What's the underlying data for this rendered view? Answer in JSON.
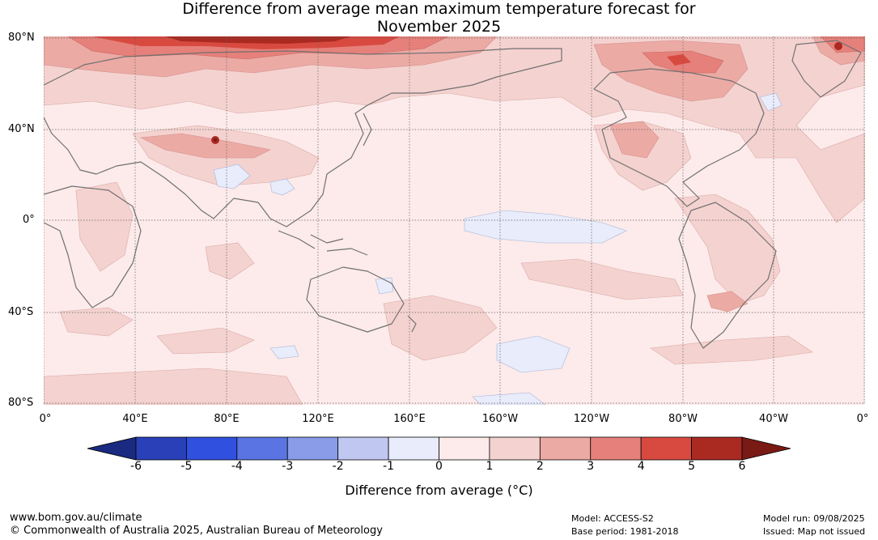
{
  "title_line1": "Difference from average mean maximum temperature forecast for",
  "title_line2": "November 2025",
  "lat_labels": [
    "80°N",
    "40°N",
    "0°",
    "40°S",
    "80°S"
  ],
  "lon_labels": [
    "0°",
    "40°E",
    "80°E",
    "120°E",
    "160°E",
    "160°W",
    "120°W",
    "80°W",
    "40°W",
    "0°"
  ],
  "colorbar": {
    "ticks": [
      "-6",
      "-5",
      "-4",
      "-3",
      "-2",
      "-1",
      "0",
      "1",
      "2",
      "3",
      "4",
      "5",
      "6"
    ],
    "colors": [
      "#1a2a80",
      "#2a40b8",
      "#3050e0",
      "#5a74e4",
      "#8a9ce8",
      "#c0c8f2",
      "#e8ecfb",
      "#fcebea",
      "#f4d2d0",
      "#ecaaa5",
      "#e6807a",
      "#d84a40",
      "#aa2a22",
      "#7a1a14"
    ],
    "label": "Difference from average (°C)"
  },
  "footer": {
    "website": "www.bom.gov.au/climate",
    "copyright": "© Commonwealth of Australia 2025, Australian Bureau of Meteorology",
    "model": "Model: ACCESS-S2",
    "base_period": "Base period: 1981-2018",
    "model_run": "Model run: 09/08/2025",
    "issued": "Issued: Map not issued"
  }
}
